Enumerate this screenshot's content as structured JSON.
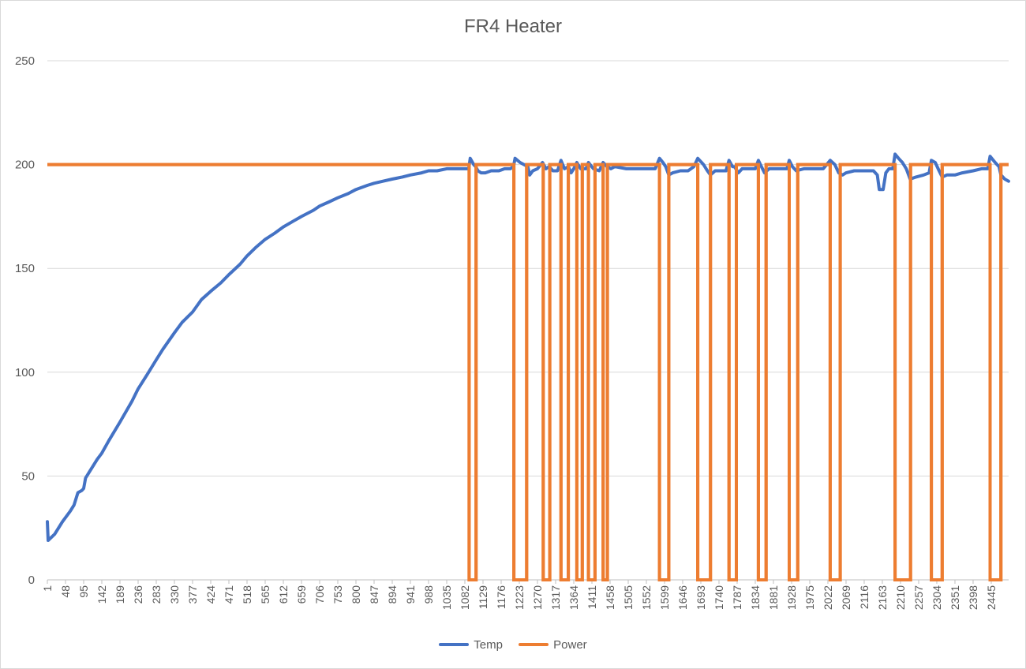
{
  "chart_data": {
    "type": "line",
    "title": "FR4 Heater",
    "xlabel": "",
    "ylabel": "",
    "ylim": [
      0,
      250
    ],
    "xlim": [
      1,
      2490
    ],
    "y_ticks": [
      "0",
      "50",
      "100",
      "150",
      "200",
      "250"
    ],
    "x_ticks": [
      "1",
      "48",
      "95",
      "142",
      "189",
      "236",
      "283",
      "330",
      "377",
      "424",
      "471",
      "518",
      "565",
      "612",
      "659",
      "706",
      "753",
      "800",
      "847",
      "894",
      "941",
      "988",
      "1035",
      "1082",
      "1129",
      "1176",
      "1223",
      "1270",
      "1317",
      "1364",
      "1411",
      "1458",
      "1505",
      "1552",
      "1599",
      "1646",
      "1693",
      "1740",
      "1787",
      "1834",
      "1881",
      "1928",
      "1975",
      "2022",
      "2069",
      "2116",
      "2163",
      "2210",
      "2257",
      "2304",
      "2351",
      "2398",
      "2445"
    ],
    "grid": "horizontal",
    "legend": "bottom",
    "series": [
      {
        "name": "Temp",
        "color": "#4472c4",
        "points": [
          [
            1,
            28
          ],
          [
            3,
            19
          ],
          [
            20,
            22
          ],
          [
            40,
            28
          ],
          [
            60,
            33
          ],
          [
            70,
            36
          ],
          [
            80,
            42
          ],
          [
            90,
            43
          ],
          [
            95,
            44
          ],
          [
            100,
            49
          ],
          [
            110,
            52
          ],
          [
            120,
            55
          ],
          [
            130,
            58
          ],
          [
            142,
            61
          ],
          [
            160,
            67
          ],
          [
            189,
            76
          ],
          [
            220,
            86
          ],
          [
            236,
            92
          ],
          [
            260,
            99
          ],
          [
            283,
            106
          ],
          [
            300,
            111
          ],
          [
            330,
            119
          ],
          [
            350,
            124
          ],
          [
            377,
            129
          ],
          [
            400,
            135
          ],
          [
            424,
            139
          ],
          [
            450,
            143
          ],
          [
            471,
            147
          ],
          [
            500,
            152
          ],
          [
            518,
            156
          ],
          [
            540,
            160
          ],
          [
            565,
            164
          ],
          [
            590,
            167
          ],
          [
            612,
            170
          ],
          [
            640,
            173
          ],
          [
            659,
            175
          ],
          [
            690,
            178
          ],
          [
            706,
            180
          ],
          [
            730,
            182
          ],
          [
            753,
            184
          ],
          [
            780,
            186
          ],
          [
            800,
            188
          ],
          [
            830,
            190
          ],
          [
            847,
            191
          ],
          [
            870,
            192
          ],
          [
            894,
            193
          ],
          [
            920,
            194
          ],
          [
            941,
            195
          ],
          [
            970,
            196
          ],
          [
            988,
            197
          ],
          [
            1010,
            197
          ],
          [
            1035,
            198
          ],
          [
            1060,
            198
          ],
          [
            1082,
            198
          ],
          [
            1092,
            198
          ],
          [
            1096,
            203
          ],
          [
            1105,
            200
          ],
          [
            1110,
            199
          ],
          [
            1116,
            197
          ],
          [
            1124,
            196
          ],
          [
            1135,
            196
          ],
          [
            1150,
            197
          ],
          [
            1170,
            197
          ],
          [
            1185,
            198
          ],
          [
            1200,
            198
          ],
          [
            1208,
            199
          ],
          [
            1212,
            203
          ],
          [
            1225,
            201
          ],
          [
            1245,
            199
          ],
          [
            1250,
            195
          ],
          [
            1258,
            197
          ],
          [
            1270,
            198
          ],
          [
            1283,
            201
          ],
          [
            1292,
            198
          ],
          [
            1300,
            199
          ],
          [
            1310,
            197
          ],
          [
            1322,
            197
          ],
          [
            1331,
            202
          ],
          [
            1340,
            198
          ],
          [
            1350,
            199
          ],
          [
            1357,
            196
          ],
          [
            1364,
            198
          ],
          [
            1372,
            201
          ],
          [
            1382,
            198
          ],
          [
            1396,
            198
          ],
          [
            1402,
            201
          ],
          [
            1415,
            198
          ],
          [
            1430,
            197
          ],
          [
            1440,
            201
          ],
          [
            1450,
            199
          ],
          [
            1460,
            198
          ],
          [
            1470,
            199
          ],
          [
            1500,
            198
          ],
          [
            1530,
            198
          ],
          [
            1560,
            198
          ],
          [
            1575,
            198
          ],
          [
            1586,
            203
          ],
          [
            1595,
            201
          ],
          [
            1602,
            199
          ],
          [
            1610,
            195
          ],
          [
            1620,
            196
          ],
          [
            1640,
            197
          ],
          [
            1660,
            197
          ],
          [
            1675,
            199
          ],
          [
            1685,
            203
          ],
          [
            1700,
            200
          ],
          [
            1710,
            197
          ],
          [
            1718,
            195
          ],
          [
            1730,
            197
          ],
          [
            1740,
            197
          ],
          [
            1758,
            197
          ],
          [
            1766,
            202
          ],
          [
            1775,
            199
          ],
          [
            1780,
            199
          ],
          [
            1790,
            196
          ],
          [
            1800,
            198
          ],
          [
            1820,
            198
          ],
          [
            1834,
            198
          ],
          [
            1842,
            202
          ],
          [
            1850,
            199
          ],
          [
            1858,
            196
          ],
          [
            1870,
            198
          ],
          [
            1881,
            198
          ],
          [
            1900,
            198
          ],
          [
            1916,
            198
          ],
          [
            1922,
            202
          ],
          [
            1930,
            199
          ],
          [
            1940,
            197
          ],
          [
            1960,
            198
          ],
          [
            1975,
            198
          ],
          [
            1990,
            198
          ],
          [
            2010,
            198
          ],
          [
            2028,
            202
          ],
          [
            2040,
            200
          ],
          [
            2050,
            196
          ],
          [
            2060,
            195
          ],
          [
            2069,
            196
          ],
          [
            2090,
            197
          ],
          [
            2116,
            197
          ],
          [
            2140,
            197
          ],
          [
            2150,
            195
          ],
          [
            2155,
            188
          ],
          [
            2165,
            188
          ],
          [
            2172,
            196
          ],
          [
            2180,
            198
          ],
          [
            2190,
            198
          ],
          [
            2196,
            205
          ],
          [
            2205,
            203
          ],
          [
            2215,
            201
          ],
          [
            2225,
            198
          ],
          [
            2235,
            193
          ],
          [
            2250,
            194
          ],
          [
            2270,
            195
          ],
          [
            2284,
            196
          ],
          [
            2290,
            202
          ],
          [
            2300,
            201
          ],
          [
            2310,
            197
          ],
          [
            2318,
            194
          ],
          [
            2330,
            195
          ],
          [
            2351,
            195
          ],
          [
            2370,
            196
          ],
          [
            2398,
            197
          ],
          [
            2420,
            198
          ],
          [
            2436,
            198
          ],
          [
            2442,
            204
          ],
          [
            2455,
            201
          ],
          [
            2465,
            199
          ],
          [
            2470,
            195
          ],
          [
            2480,
            193
          ],
          [
            2490,
            192
          ]
        ]
      },
      {
        "name": "Power",
        "color": "#ed7d31",
        "value_high": 200,
        "value_low": 0,
        "off_intervals": [
          [
            1093,
            1111
          ],
          [
            1209,
            1242
          ],
          [
            1285,
            1302
          ],
          [
            1331,
            1350
          ],
          [
            1372,
            1386
          ],
          [
            1402,
            1419
          ],
          [
            1440,
            1451
          ],
          [
            1586,
            1610
          ],
          [
            1685,
            1718
          ],
          [
            1766,
            1785
          ],
          [
            1842,
            1862
          ],
          [
            1922,
            1944
          ],
          [
            2028,
            2054
          ],
          [
            2196,
            2236
          ],
          [
            2290,
            2318
          ],
          [
            2442,
            2470
          ]
        ]
      }
    ]
  }
}
